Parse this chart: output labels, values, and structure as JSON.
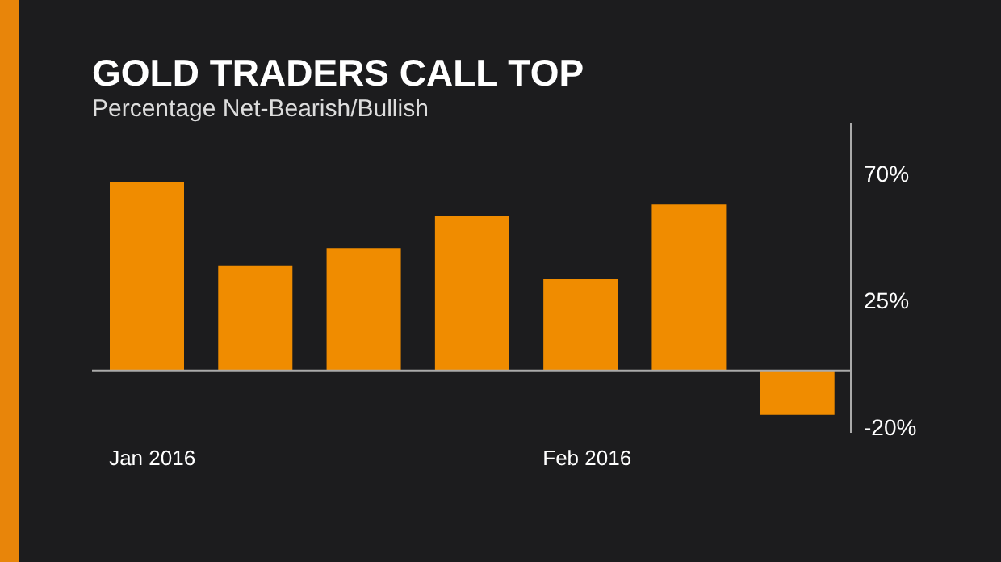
{
  "chart_data": {
    "type": "bar",
    "title": "GOLD TRADERS CALL TOP",
    "subtitle": "Percentage Net-Bearish/Bullish",
    "categories": [
      "Jan 2016",
      null,
      null,
      null,
      "Feb 2016",
      null,
      null
    ],
    "values": [
      67,
      37.4,
      43.5,
      54.8,
      32.6,
      59,
      -15.6
    ],
    "color": "#f08c00",
    "ylim": [
      -22,
      88
    ],
    "yticks": [
      {
        "value": -20,
        "label": "-20%"
      },
      {
        "value": 25,
        "label": "25%"
      },
      {
        "value": 70,
        "label": "70%"
      }
    ],
    "ref_lines": [
      {
        "axis": "y",
        "value": 0,
        "color": "#aaaaaa"
      }
    ],
    "grid": false,
    "legend": false
  }
}
